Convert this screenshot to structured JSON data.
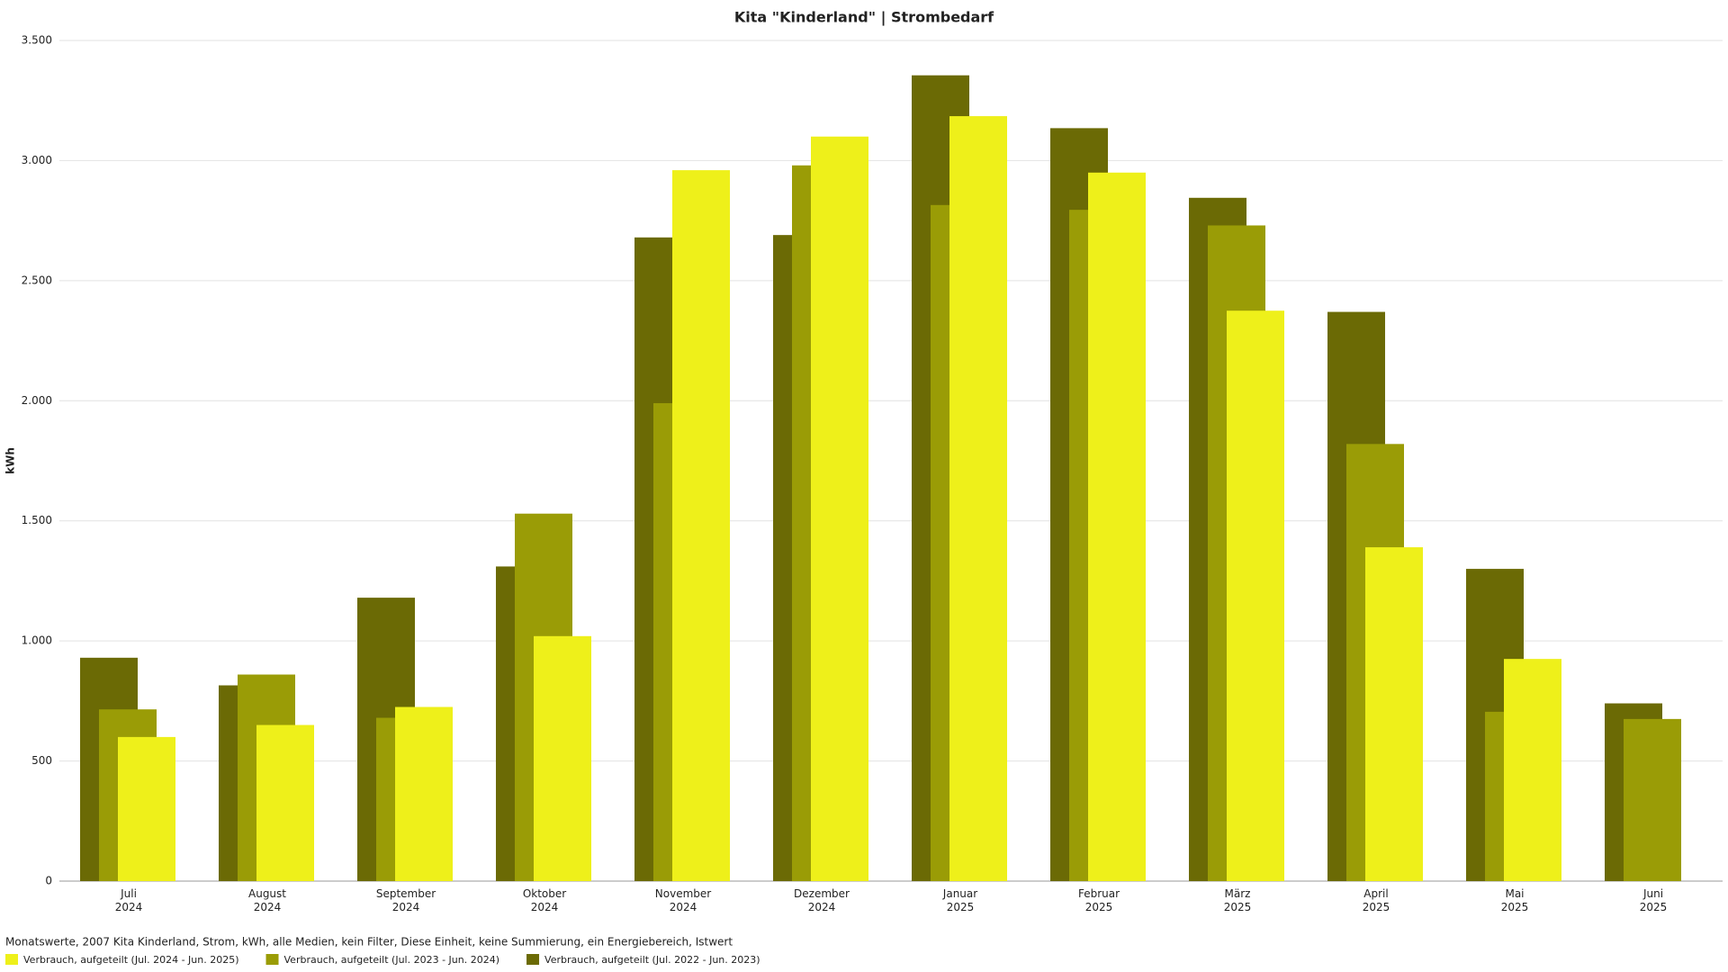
{
  "chart_data": {
    "type": "bar",
    "title": "Kita \"Kinderland\" | Strombedarf",
    "y_label": "kWh",
    "note": "Monatswerte, 2007 Kita Kinderland, Strom, kWh, alle Medien, kein Filter, Diese Einheit, keine Summierung, ein Energiebereich, Istwert",
    "categories": [
      [
        "Juli",
        "2024"
      ],
      [
        "August",
        "2024"
      ],
      [
        "September",
        "2024"
      ],
      [
        "Oktober",
        "2024"
      ],
      [
        "November",
        "2024"
      ],
      [
        "Dezember",
        "2024"
      ],
      [
        "Januar",
        "2025"
      ],
      [
        "Februar",
        "2025"
      ],
      [
        "März",
        "2025"
      ],
      [
        "April",
        "2025"
      ],
      [
        "Mai",
        "2025"
      ],
      [
        "Juni",
        "2025"
      ]
    ],
    "series": [
      {
        "name": "Verbrauch, aufgeteilt (Jul. 2024 - Jun. 2025)",
        "color": "#eef01a",
        "values": [
          600,
          650,
          725,
          1020,
          2960,
          3100,
          3185,
          2950,
          2375,
          1390,
          925,
          null
        ]
      },
      {
        "name": "Verbrauch, aufgeteilt (Jul. 2023 - Jun. 2024)",
        "color": "#9a9c06",
        "values": [
          715,
          860,
          680,
          1530,
          1990,
          2980,
          2815,
          2795,
          2730,
          1820,
          705,
          675
        ]
      },
      {
        "name": "Verbrauch, aufgeteilt (Jul. 2022 - Jun. 2023)",
        "color": "#6b6a05",
        "values": [
          930,
          815,
          1180,
          1310,
          2680,
          2690,
          3355,
          3135,
          2845,
          2370,
          1300,
          740
        ]
      }
    ],
    "ylim": [
      0,
      3500
    ],
    "yticks": [
      0,
      500,
      {
        "value": 1000,
        "label": "1.000"
      },
      {
        "value": 1500,
        "label": "1.500"
      },
      {
        "value": 2000,
        "label": "2.000"
      },
      {
        "value": 2500,
        "label": "2.500"
      },
      {
        "value": 3000,
        "label": "3.000"
      },
      {
        "value": 3500,
        "label": "3.500"
      }
    ],
    "grid": true
  }
}
